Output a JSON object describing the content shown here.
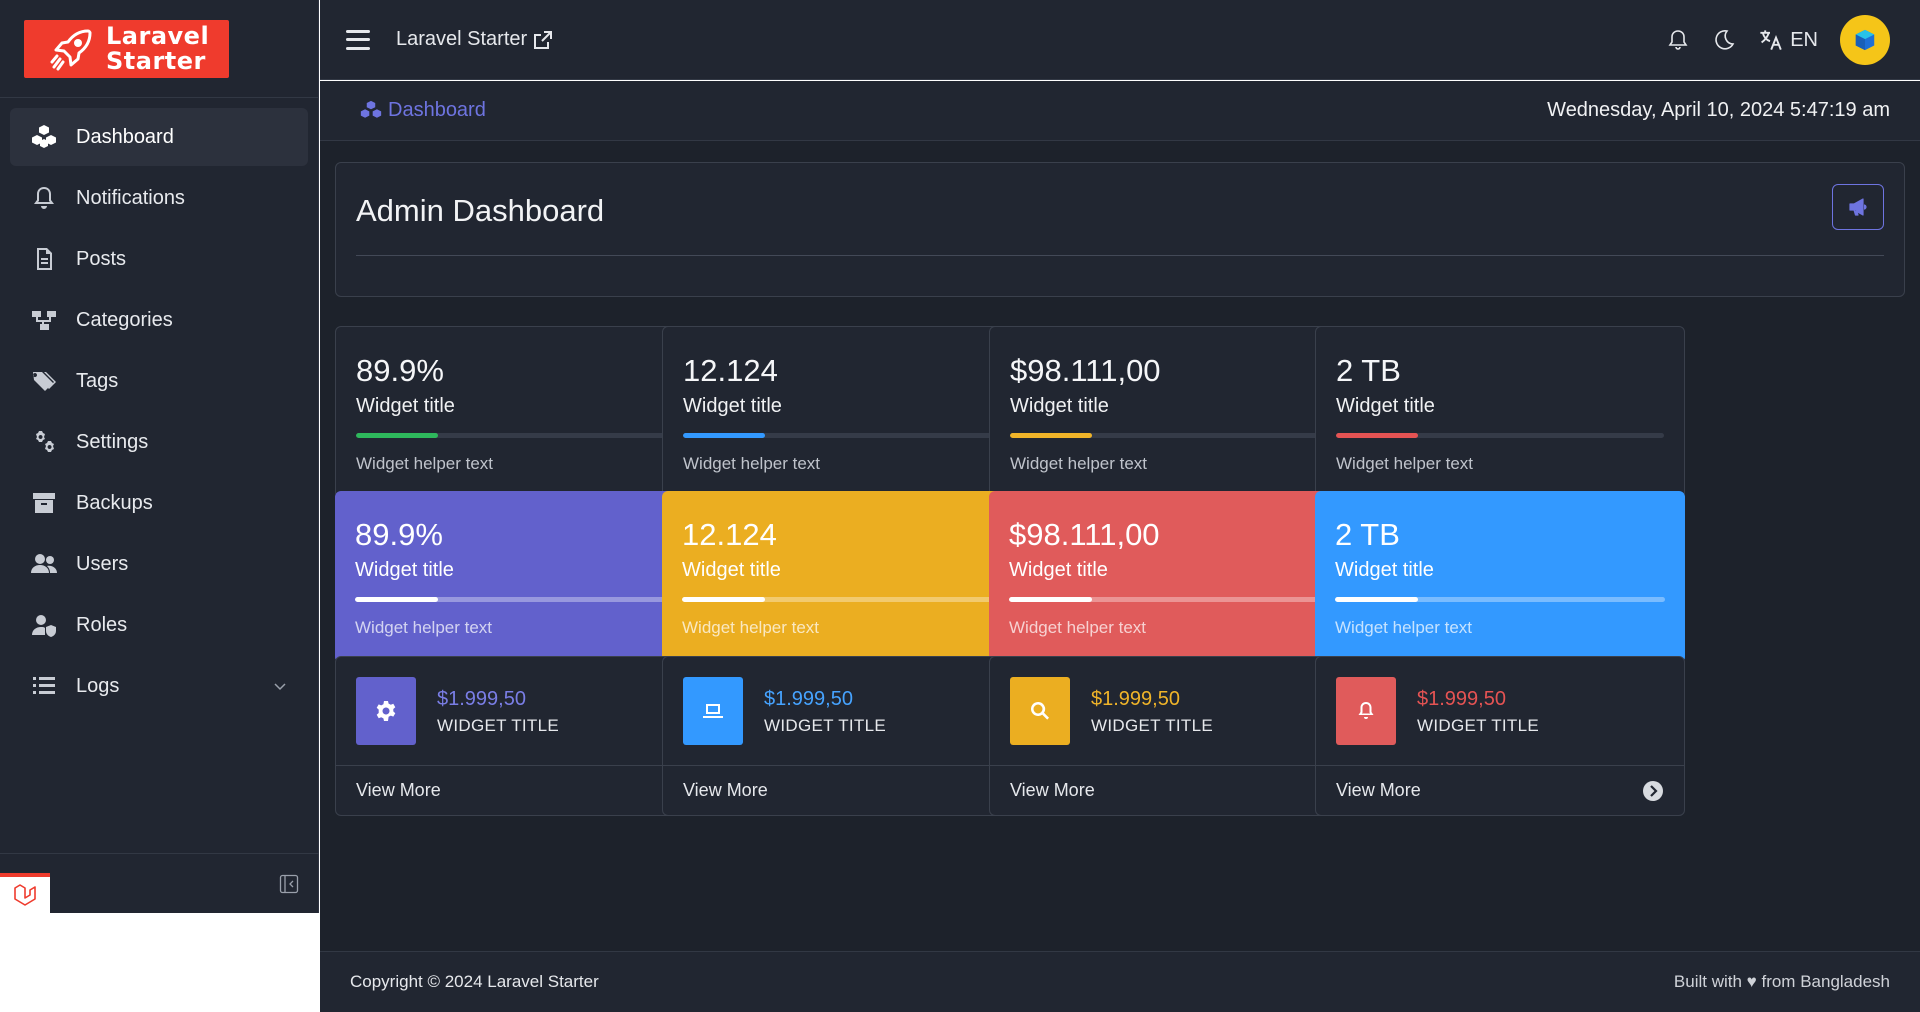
{
  "brand": {
    "line1": "Laravel",
    "line2": "Starter"
  },
  "sidebar": {
    "items": [
      {
        "label": "Dashboard",
        "icon": "cubes-icon",
        "active": true
      },
      {
        "label": "Notifications",
        "icon": "bell-icon"
      },
      {
        "label": "Posts",
        "icon": "file-icon"
      },
      {
        "label": "Categories",
        "icon": "sitemap-icon"
      },
      {
        "label": "Tags",
        "icon": "tags-icon"
      },
      {
        "label": "Settings",
        "icon": "gears-icon"
      },
      {
        "label": "Backups",
        "icon": "archive-icon"
      },
      {
        "label": "Users",
        "icon": "users-icon"
      },
      {
        "label": "Roles",
        "icon": "user-shield-icon"
      },
      {
        "label": "Logs",
        "icon": "list-icon",
        "has_submenu": true
      }
    ]
  },
  "header": {
    "app_name": "Laravel Starter",
    "lang": "EN"
  },
  "breadcrumb": {
    "label": "Dashboard"
  },
  "datetime": "Wednesday, April 10, 2024 5:47:19 am",
  "dashboard": {
    "title": "Admin Dashboard"
  },
  "stats_outline": [
    {
      "value": "89.9%",
      "title": "Widget title",
      "helper": "Widget helper text",
      "progress": 0.25,
      "color": "#2eb85c"
    },
    {
      "value": "12.124",
      "title": "Widget title",
      "helper": "Widget helper text",
      "progress": 0.25,
      "color": "#3399ff"
    },
    {
      "value": "$98.111,00",
      "title": "Widget title",
      "helper": "Widget helper text",
      "progress": 0.25,
      "color": "#f0b429"
    },
    {
      "value": "2 TB",
      "title": "Widget title",
      "helper": "Widget helper text",
      "progress": 0.25,
      "color": "#e55353"
    }
  ],
  "stats_filled": [
    {
      "value": "89.9%",
      "title": "Widget title",
      "helper": "Widget helper text",
      "progress": 0.25,
      "color": "#6261cc"
    },
    {
      "value": "12.124",
      "title": "Widget title",
      "helper": "Widget helper text",
      "progress": 0.25,
      "color": "#ebae21"
    },
    {
      "value": "$98.111,00",
      "title": "Widget title",
      "helper": "Widget helper text",
      "progress": 0.25,
      "color": "#e05b5b"
    },
    {
      "value": "2 TB",
      "title": "Widget title",
      "helper": "Widget helper text",
      "progress": 0.25,
      "color": "#3399ff"
    }
  ],
  "mini_widgets": [
    {
      "value": "$1.999,50",
      "title": "WIDGET TITLE",
      "link": "View More",
      "color": "#6261cc",
      "value_color": "#7a7ee6",
      "icon": "gear-icon"
    },
    {
      "value": "$1.999,50",
      "title": "WIDGET TITLE",
      "link": "View More",
      "color": "#3399ff",
      "value_color": "#46a3ff",
      "icon": "laptop-icon"
    },
    {
      "value": "$1.999,50",
      "title": "WIDGET TITLE",
      "link": "View More",
      "color": "#ebae21",
      "value_color": "#f0b429",
      "icon": "search-icon"
    },
    {
      "value": "$1.999,50",
      "title": "WIDGET TITLE",
      "link": "View More",
      "color": "#e05b5b",
      "value_color": "#e55353",
      "icon": "bell-icon"
    }
  ],
  "footer": {
    "copyright": "Copyright © 2024 Laravel Starter",
    "built": "Built with ♥ from Bangladesh"
  }
}
